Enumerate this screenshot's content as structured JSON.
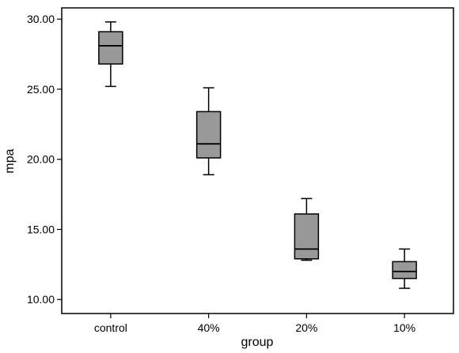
{
  "chart_data": {
    "type": "box",
    "xlabel": "group",
    "ylabel": "mpa",
    "ylim": [
      9.0,
      30.8
    ],
    "yticks": [
      10.0,
      15.0,
      20.0,
      25.0,
      30.0
    ],
    "ytick_labels": [
      "10.00",
      "15.00",
      "20.00",
      "25.00",
      "30.00"
    ],
    "categories": [
      "control",
      "40%",
      "20%",
      "10%"
    ],
    "boxes": [
      {
        "category": "control",
        "min": 25.2,
        "q1": 26.8,
        "median": 28.1,
        "q3": 29.1,
        "max": 29.8
      },
      {
        "category": "40%",
        "min": 18.9,
        "q1": 20.1,
        "median": 21.1,
        "q3": 23.4,
        "max": 25.1
      },
      {
        "category": "20%",
        "min": 12.8,
        "q1": 12.9,
        "median": 13.6,
        "q3": 16.1,
        "max": 17.2
      },
      {
        "category": "10%",
        "min": 10.8,
        "q1": 11.5,
        "median": 12.0,
        "q3": 12.7,
        "max": 13.6
      }
    ],
    "box_color": "#999999",
    "grid": false
  }
}
